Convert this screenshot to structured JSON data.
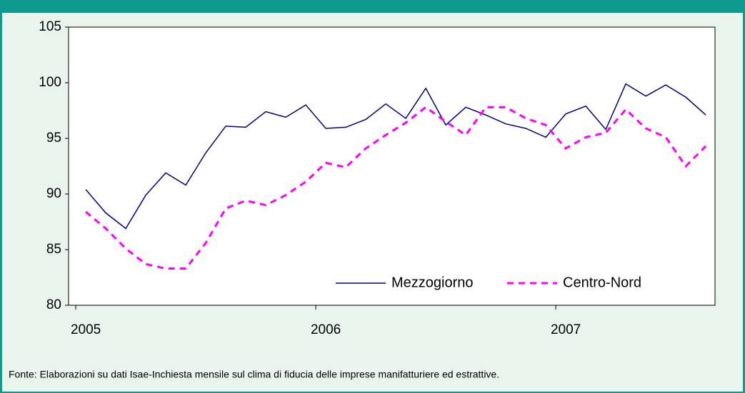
{
  "chart_data": {
    "type": "line",
    "source": "Fonte: Elaborazioni su dati Isae-Inchiesta mensile sul clima di fiducia delle imprese manifatturiere ed estrattive.",
    "x": [
      0,
      1,
      2,
      3,
      4,
      5,
      6,
      7,
      8,
      9,
      10,
      11,
      12,
      13,
      14,
      15,
      16,
      17,
      18,
      19,
      20,
      21,
      22,
      23,
      24,
      25,
      26,
      27,
      28,
      29,
      30,
      31
    ],
    "xlim": [
      -0.86,
      31.46
    ],
    "xticks": [
      {
        "value": 0,
        "label": "2005"
      },
      {
        "value": 12,
        "label": "2006"
      },
      {
        "value": 24,
        "label": "2007"
      }
    ],
    "ylim": [
      80,
      105
    ],
    "yticks": [
      80,
      85,
      90,
      95,
      100,
      105
    ],
    "legend": "lower right",
    "series": [
      {
        "name": "Mezzogiorno",
        "color": "#000080",
        "dash": "solid",
        "values": [
          90.4,
          88.3,
          86.9,
          89.9,
          91.9,
          90.8,
          93.7,
          96.1,
          96.0,
          97.4,
          96.9,
          98.0,
          95.9,
          96.0,
          96.7,
          98.1,
          96.8,
          99.5,
          96.2,
          97.8,
          97.1,
          96.3,
          95.9,
          95.1,
          97.2,
          97.9,
          95.8,
          99.9,
          98.8,
          99.8,
          98.7,
          97.1
        ]
      },
      {
        "name": "Centro-Nord",
        "color": "#ff00ff",
        "dash": "dashed",
        "values": [
          88.4,
          86.9,
          85.1,
          83.7,
          83.3,
          83.3,
          85.6,
          88.7,
          89.4,
          89.0,
          89.9,
          91.1,
          92.8,
          92.4,
          94.1,
          95.3,
          96.4,
          97.8,
          96.5,
          95.3,
          97.8,
          97.8,
          96.8,
          96.2,
          94.1,
          95.1,
          95.5,
          97.6,
          95.9,
          95.1,
          92.5,
          94.3
        ]
      }
    ]
  }
}
